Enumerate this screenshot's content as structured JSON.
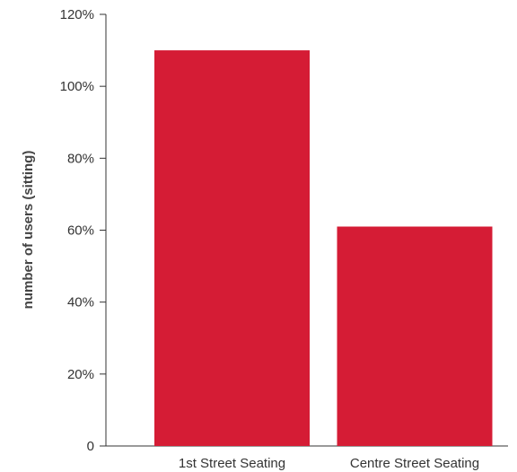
{
  "chart_data": {
    "type": "bar",
    "categories": [
      "1st Street Seating",
      "Centre Street Seating"
    ],
    "values": [
      110,
      61
    ],
    "title": "",
    "xlabel": "",
    "ylabel": "number of users (sitting)",
    "ylim": [
      0,
      120
    ],
    "yticks": [
      0,
      20,
      40,
      60,
      80,
      100,
      120
    ],
    "ytick_labels": [
      "0",
      "20%",
      "40%",
      "60%",
      "80%",
      "100%",
      "120%"
    ],
    "grid": false,
    "legend": "none",
    "bar_color": "#d51c35"
  }
}
